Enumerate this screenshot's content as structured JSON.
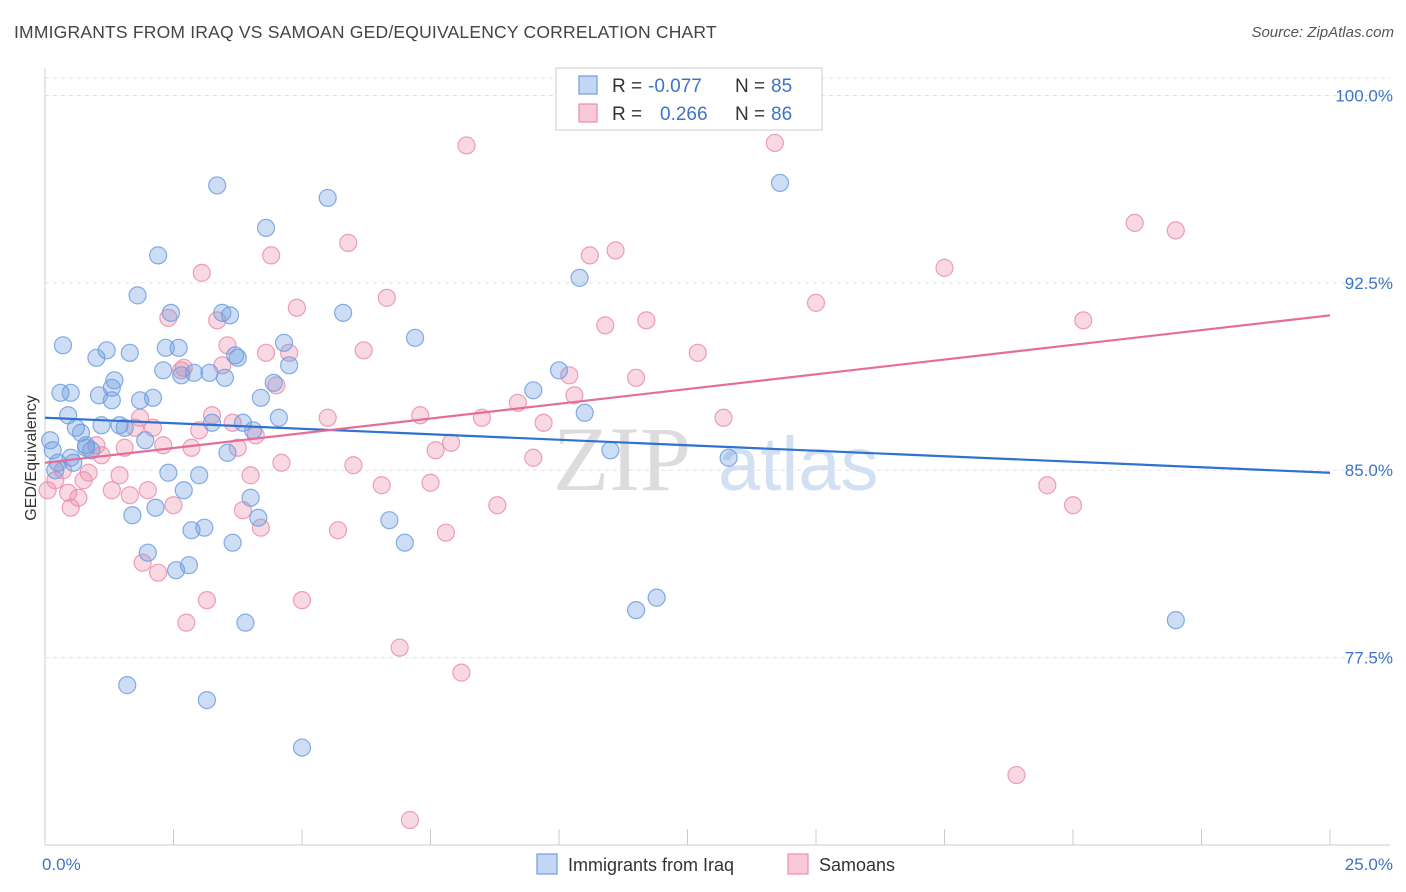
{
  "title": "IMMIGRANTS FROM IRAQ VS SAMOAN GED/EQUIVALENCY CORRELATION CHART",
  "source": "Source: ZipAtlas.com",
  "watermark": {
    "zip": "ZIP",
    "atlas": "atlas"
  },
  "legend_top": {
    "rows": [
      {
        "r_label": "R =",
        "r_value": "-0.077",
        "n_label": "N =",
        "n_value": "85"
      },
      {
        "r_label": "R =",
        "r_value": "0.266",
        "n_label": "N =",
        "n_value": "86"
      }
    ]
  },
  "legend_bottom": [
    "Immigrants from Iraq",
    "Samoans"
  ],
  "chart_data": {
    "type": "scatter",
    "ylabel": "GED/Equivalency",
    "x_tick_labels": [
      "0.0%",
      "25.0%"
    ],
    "y_tick_labels": [
      "100.0%",
      "92.5%",
      "85.0%",
      "77.5%"
    ],
    "y_ticks": [
      100.0,
      92.5,
      85.0,
      77.5
    ],
    "xlim": [
      0,
      25
    ],
    "ylim": [
      70.0,
      100.7
    ],
    "grid": true,
    "colors": {
      "iraq": "#6f9fe0",
      "samoan": "#ec8eac",
      "iraq_line": "#2f72cf",
      "samoan_line": "#e56e98"
    },
    "series": [
      {
        "name": "Immigrants from Iraq",
        "r": -0.077,
        "n": 85,
        "trend": {
          "x0": 0,
          "y0": 87.1,
          "x1": 25,
          "y1": 84.9
        },
        "points": [
          [
            0.1,
            86.2
          ],
          [
            0.15,
            85.8
          ],
          [
            0.2,
            85.0
          ],
          [
            0.25,
            85.3
          ],
          [
            0.3,
            88.1
          ],
          [
            0.35,
            90.0
          ],
          [
            0.45,
            87.2
          ],
          [
            0.5,
            88.1
          ],
          [
            0.55,
            85.3
          ],
          [
            0.6,
            86.7
          ],
          [
            0.7,
            86.5
          ],
          [
            0.8,
            86.0
          ],
          [
            0.9,
            85.8
          ],
          [
            1.0,
            89.5
          ],
          [
            1.05,
            88.0
          ],
          [
            1.1,
            86.8
          ],
          [
            1.2,
            89.8
          ],
          [
            1.3,
            88.3
          ],
          [
            1.35,
            88.6
          ],
          [
            1.45,
            86.8
          ],
          [
            1.55,
            86.7
          ],
          [
            1.65,
            89.7
          ],
          [
            1.7,
            83.2
          ],
          [
            1.8,
            92.0
          ],
          [
            1.85,
            87.8
          ],
          [
            1.95,
            86.2
          ],
          [
            2.0,
            81.7
          ],
          [
            2.1,
            87.9
          ],
          [
            2.15,
            83.5
          ],
          [
            2.2,
            93.6
          ],
          [
            2.35,
            89.9
          ],
          [
            2.4,
            84.9
          ],
          [
            2.45,
            91.3
          ],
          [
            2.55,
            81.0
          ],
          [
            2.6,
            89.9
          ],
          [
            2.65,
            88.8
          ],
          [
            2.7,
            84.2
          ],
          [
            2.8,
            81.2
          ],
          [
            2.85,
            82.6
          ],
          [
            3.0,
            84.8
          ],
          [
            3.1,
            82.7
          ],
          [
            3.2,
            88.9
          ],
          [
            3.25,
            86.9
          ],
          [
            3.35,
            96.4
          ],
          [
            3.45,
            91.3
          ],
          [
            3.5,
            88.7
          ],
          [
            3.55,
            85.7
          ],
          [
            3.6,
            91.2
          ],
          [
            3.65,
            82.1
          ],
          [
            3.75,
            89.5
          ],
          [
            3.85,
            86.9
          ],
          [
            3.9,
            78.9
          ],
          [
            4.0,
            83.9
          ],
          [
            4.05,
            86.6
          ],
          [
            4.15,
            83.1
          ],
          [
            4.2,
            87.9
          ],
          [
            4.3,
            94.7
          ],
          [
            4.45,
            88.5
          ],
          [
            4.55,
            87.1
          ],
          [
            4.65,
            90.1
          ],
          [
            4.75,
            89.2
          ],
          [
            5.5,
            95.9
          ],
          [
            5.8,
            91.3
          ],
          [
            6.7,
            83.0
          ],
          [
            7.0,
            82.1
          ],
          [
            7.2,
            90.3
          ],
          [
            9.5,
            88.2
          ],
          [
            10.0,
            89.0
          ],
          [
            10.4,
            92.7
          ],
          [
            10.5,
            87.3
          ],
          [
            11.0,
            85.8
          ],
          [
            11.5,
            79.4
          ],
          [
            11.9,
            79.9
          ],
          [
            13.3,
            85.5
          ],
          [
            14.3,
            96.5
          ],
          [
            1.6,
            76.4
          ],
          [
            3.15,
            75.8
          ],
          [
            5.0,
            73.9
          ],
          [
            22.0,
            79.0
          ],
          [
            2.9,
            88.9
          ],
          [
            1.3,
            87.8
          ],
          [
            0.8,
            85.9
          ],
          [
            2.3,
            89.0
          ],
          [
            3.7,
            89.6
          ],
          [
            0.5,
            85.5
          ]
        ]
      },
      {
        "name": "Samoans",
        "r": 0.266,
        "n": 86,
        "trend": {
          "x0": 0,
          "y0": 85.3,
          "x1": 25,
          "y1": 91.2
        },
        "points": [
          [
            0.05,
            84.2
          ],
          [
            0.2,
            84.6
          ],
          [
            0.35,
            85.0
          ],
          [
            0.45,
            84.1
          ],
          [
            0.5,
            83.5
          ],
          [
            0.65,
            83.9
          ],
          [
            0.75,
            84.6
          ],
          [
            0.85,
            84.9
          ],
          [
            1.0,
            86.0
          ],
          [
            1.1,
            85.6
          ],
          [
            1.3,
            84.2
          ],
          [
            1.45,
            84.8
          ],
          [
            1.55,
            85.9
          ],
          [
            1.65,
            84.0
          ],
          [
            1.75,
            86.7
          ],
          [
            1.85,
            87.1
          ],
          [
            1.9,
            81.3
          ],
          [
            2.0,
            84.2
          ],
          [
            2.1,
            86.7
          ],
          [
            2.2,
            80.9
          ],
          [
            2.3,
            86.0
          ],
          [
            2.4,
            91.1
          ],
          [
            2.5,
            83.6
          ],
          [
            2.65,
            89.0
          ],
          [
            2.75,
            78.9
          ],
          [
            2.85,
            85.9
          ],
          [
            3.0,
            86.6
          ],
          [
            3.05,
            92.9
          ],
          [
            3.15,
            79.8
          ],
          [
            3.25,
            87.2
          ],
          [
            3.35,
            91.0
          ],
          [
            3.45,
            89.2
          ],
          [
            3.55,
            90.0
          ],
          [
            3.65,
            86.9
          ],
          [
            3.75,
            85.9
          ],
          [
            3.85,
            83.4
          ],
          [
            4.0,
            84.8
          ],
          [
            4.1,
            86.4
          ],
          [
            4.2,
            82.7
          ],
          [
            4.3,
            89.7
          ],
          [
            4.4,
            93.6
          ],
          [
            4.5,
            88.4
          ],
          [
            4.6,
            85.3
          ],
          [
            4.75,
            89.7
          ],
          [
            4.9,
            91.5
          ],
          [
            5.0,
            79.8
          ],
          [
            5.5,
            87.1
          ],
          [
            5.7,
            82.6
          ],
          [
            5.9,
            94.1
          ],
          [
            6.0,
            85.2
          ],
          [
            6.2,
            89.8
          ],
          [
            6.55,
            84.4
          ],
          [
            6.65,
            91.9
          ],
          [
            6.9,
            77.9
          ],
          [
            7.1,
            71.0
          ],
          [
            7.3,
            87.2
          ],
          [
            7.5,
            84.5
          ],
          [
            7.6,
            85.8
          ],
          [
            7.8,
            82.5
          ],
          [
            7.9,
            86.1
          ],
          [
            8.1,
            76.9
          ],
          [
            8.2,
            98.0
          ],
          [
            8.5,
            87.1
          ],
          [
            8.8,
            83.6
          ],
          [
            9.2,
            87.7
          ],
          [
            9.5,
            85.5
          ],
          [
            9.7,
            86.9
          ],
          [
            10.2,
            88.8
          ],
          [
            10.3,
            88.0
          ],
          [
            10.6,
            93.6
          ],
          [
            10.9,
            90.8
          ],
          [
            11.1,
            93.8
          ],
          [
            11.5,
            88.7
          ],
          [
            11.7,
            91.0
          ],
          [
            12.7,
            89.7
          ],
          [
            13.2,
            87.1
          ],
          [
            14.2,
            98.1
          ],
          [
            15.0,
            91.7
          ],
          [
            17.5,
            93.1
          ],
          [
            18.9,
            72.8
          ],
          [
            19.5,
            84.4
          ],
          [
            20.0,
            83.6
          ],
          [
            20.2,
            91.0
          ],
          [
            21.2,
            94.9
          ],
          [
            22.0,
            94.6
          ],
          [
            2.7,
            89.1
          ]
        ]
      }
    ]
  }
}
